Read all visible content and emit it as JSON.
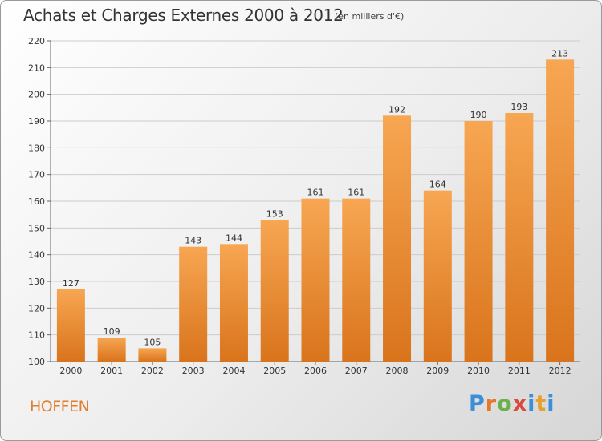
{
  "title": "Achats et Charges Externes 2000 à 2012",
  "subtitle": "(en milliers d'€)",
  "commune": "HOFFEN",
  "logo": {
    "letters": [
      "P",
      "r",
      "o",
      "x",
      "i",
      "t",
      "i"
    ],
    "colors": [
      "#3a8fd6",
      "#e8762c",
      "#6ab04c",
      "#d94a3a",
      "#3a8fd6",
      "#e8a02c",
      "#3a8fd6"
    ]
  },
  "colors": {
    "bar_top": "#f7a652",
    "bar_bottom": "#d9741c",
    "grid": "#cccccc"
  },
  "chart_data": {
    "type": "bar",
    "categories": [
      "2000",
      "2001",
      "2002",
      "2003",
      "2004",
      "2005",
      "2006",
      "2007",
      "2008",
      "2009",
      "2010",
      "2011",
      "2012"
    ],
    "values": [
      127,
      109,
      105,
      143,
      144,
      153,
      161,
      161,
      192,
      164,
      190,
      193,
      213
    ],
    "ylim": [
      100,
      220
    ],
    "yticks": [
      100,
      110,
      120,
      130,
      140,
      150,
      160,
      170,
      180,
      190,
      200,
      210,
      220
    ],
    "grid": true,
    "xlabel": "",
    "ylabel": ""
  }
}
